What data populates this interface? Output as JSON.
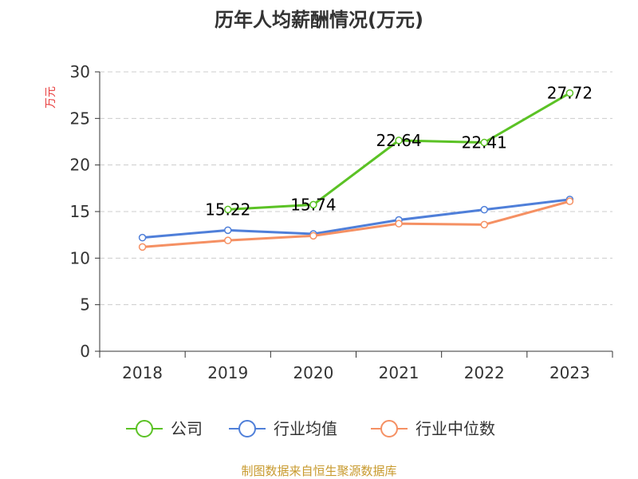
{
  "chart_data": {
    "type": "line",
    "title": "历年人均薪酬情况(万元)",
    "ylabel": "万元",
    "xlabel": "",
    "categories": [
      "2018",
      "2019",
      "2020",
      "2021",
      "2022",
      "2023"
    ],
    "ylim": [
      0,
      30
    ],
    "yticks": [
      0,
      5,
      10,
      15,
      20,
      25,
      30
    ],
    "grid": true,
    "legend_position": "bottom-center",
    "series": [
      {
        "name": "公司",
        "color": "#5bc225",
        "values": [
          null,
          15.22,
          15.74,
          22.64,
          22.41,
          27.72
        ],
        "labels": [
          "",
          "15.22",
          "15.74",
          "22.64",
          "22.41",
          "27.72"
        ]
      },
      {
        "name": "行业均值",
        "color": "#4f7fd9",
        "values": [
          12.2,
          13.0,
          12.6,
          14.1,
          15.2,
          16.3
        ]
      },
      {
        "name": "行业中位数",
        "color": "#f59063",
        "values": [
          11.2,
          11.9,
          12.4,
          13.7,
          13.6,
          16.1
        ]
      }
    ]
  },
  "footer": {
    "source": "制图数据来自恒生聚源数据库"
  },
  "colors": {
    "ylabel": "#e83e3e",
    "source": "#c89a2e",
    "grid": "#cccccc",
    "axis": "#333333"
  }
}
